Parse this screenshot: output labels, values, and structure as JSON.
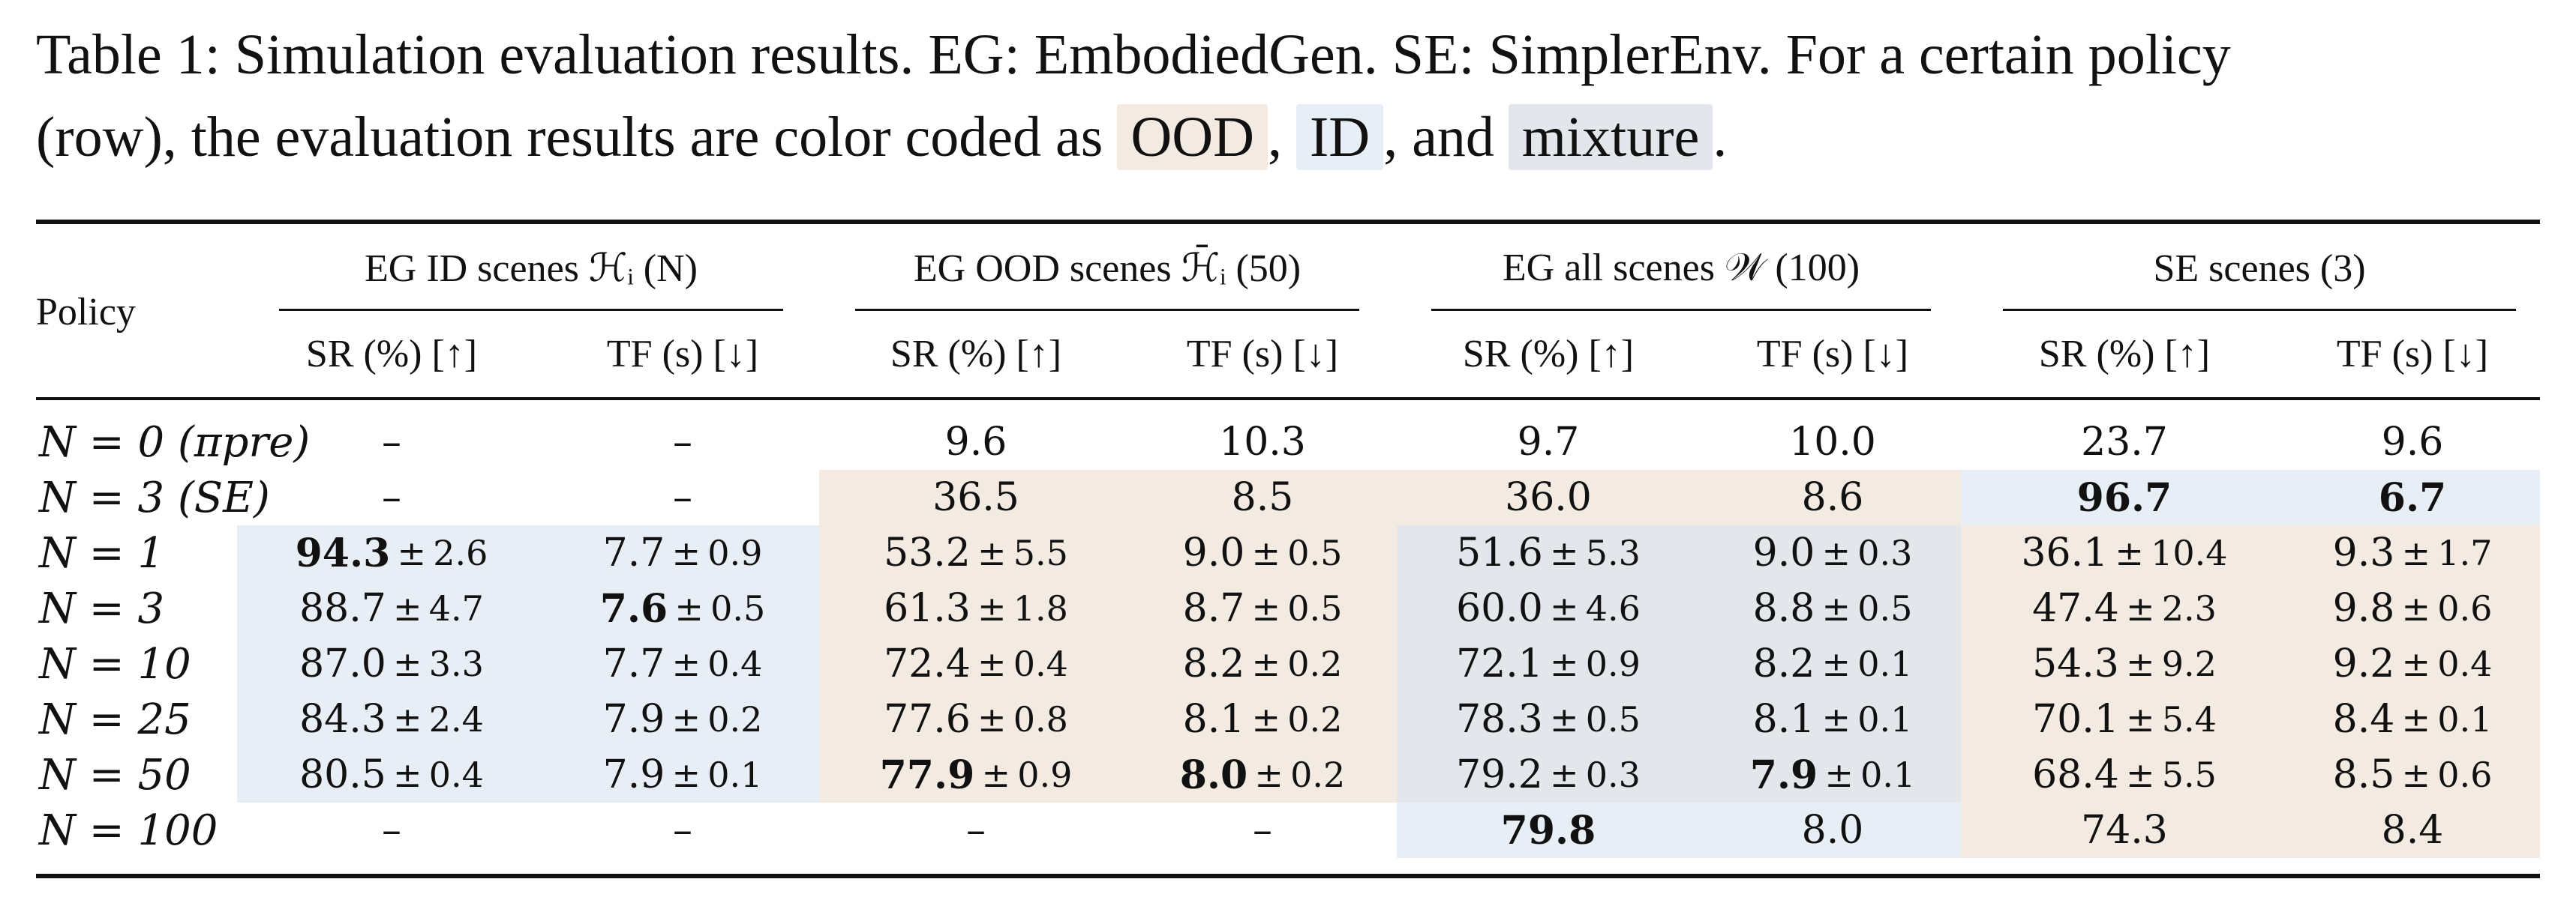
{
  "caption": {
    "line1": "Table 1: Simulation evaluation results. EG: EmbodiedGen. SE: SimplerEnv. For a certain policy",
    "line2_prefix": "(row), the evaluation results are color coded as ",
    "tag_ood": "OOD",
    "sep1": ", ",
    "tag_id": "ID",
    "sep2": ", and ",
    "tag_mix": "mixture",
    "end": "."
  },
  "colors": {
    "ood": "#f3ebe1",
    "id": "#e8eef6",
    "mixture": "#e3e6ea"
  },
  "header": {
    "policy": "Policy",
    "groups": [
      "EG ID scenes ℋᵢ (N)",
      "EG OOD scenes ℋ̄ᵢ (50)",
      "EG all scenes 𝒲 (100)",
      "SE scenes (3)"
    ],
    "sub": [
      "SR (%) [↑]",
      "TF (s) [↓]",
      "SR (%) [↑]",
      "TF (s) [↓]",
      "SR (%) [↑]",
      "TF (s) [↓]",
      "SR (%) [↑]",
      "TF (s) [↓]"
    ]
  },
  "rows": [
    {
      "label": "N = 0  (πpre)",
      "cells": [
        "–",
        "–",
        "9.6",
        "10.3",
        "9.7",
        "10.0",
        "23.7",
        "9.6"
      ]
    },
    {
      "label": "N = 3  (SE)",
      "cells": [
        "–",
        "–",
        "36.5",
        "8.5",
        "36.0",
        "8.6",
        "96.7",
        "6.7"
      ]
    },
    {
      "label": "N = 1",
      "cells": [
        "94.3 ± 2.6",
        "7.7 ± 0.9",
        "53.2 ± 5.5",
        "9.0 ± 0.5",
        "51.6 ± 5.3",
        "9.0 ± 0.3",
        "36.1 ± 10.4",
        "9.3 ± 1.7"
      ]
    },
    {
      "label": "N = 3",
      "cells": [
        "88.7 ± 4.7",
        "7.6 ± 0.5",
        "61.3 ± 1.8",
        "8.7 ± 0.5",
        "60.0 ± 4.6",
        "8.8 ± 0.5",
        "47.4 ± 2.3",
        "9.8 ± 0.6"
      ]
    },
    {
      "label": "N = 10",
      "cells": [
        "87.0 ± 3.3",
        "7.7 ± 0.4",
        "72.4 ± 0.4",
        "8.2 ± 0.2",
        "72.1 ± 0.9",
        "8.2 ± 0.1",
        "54.3 ± 9.2",
        "9.2 ± 0.4"
      ]
    },
    {
      "label": "N = 25",
      "cells": [
        "84.3 ± 2.4",
        "7.9 ± 0.2",
        "77.6 ± 0.8",
        "8.1 ± 0.2",
        "78.3 ± 0.5",
        "8.1 ± 0.1",
        "70.1 ± 5.4",
        "8.4 ± 0.1"
      ]
    },
    {
      "label": "N = 50",
      "cells": [
        "80.5 ± 0.4",
        "7.9 ± 0.1",
        "77.9 ± 0.9",
        "8.0 ± 0.2",
        "79.2 ± 0.3",
        "7.9 ± 0.1",
        "68.4 ± 5.5",
        "8.5 ± 0.6"
      ]
    },
    {
      "label": "N = 100",
      "cells": [
        "–",
        "–",
        "–",
        "–",
        "79.8",
        "8.0",
        "74.3",
        "8.4"
      ]
    }
  ]
}
